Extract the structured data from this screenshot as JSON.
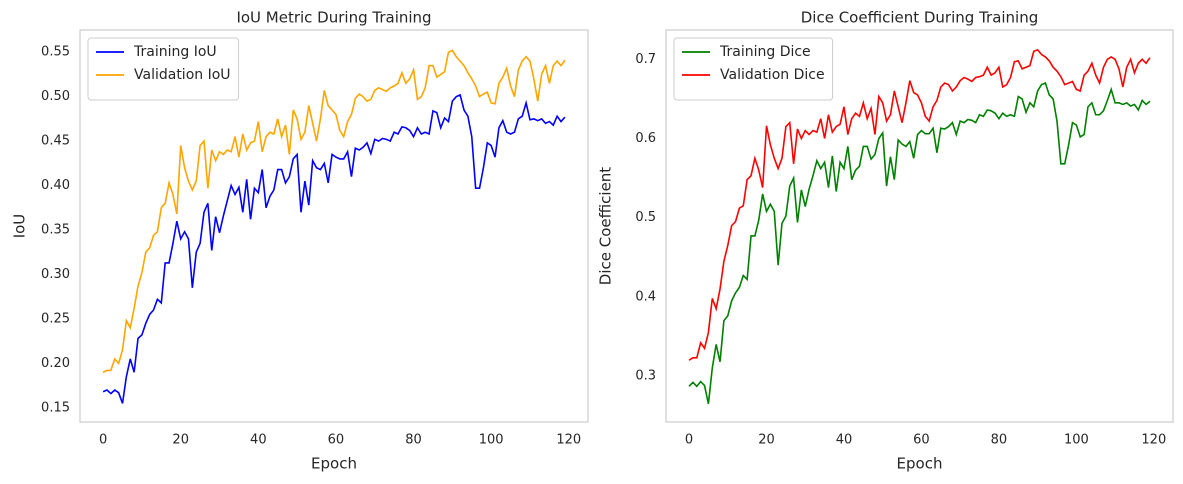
{
  "chart_data": [
    {
      "type": "line",
      "title": "IoU Metric During Training",
      "xlabel": "Epoch",
      "ylabel": "IoU",
      "x": [
        0,
        1,
        2,
        3,
        4,
        5,
        6,
        7,
        8,
        9,
        10,
        11,
        12,
        13,
        14,
        15,
        16,
        17,
        18,
        19,
        20,
        21,
        22,
        23,
        24,
        25,
        26,
        27,
        28,
        29,
        30,
        31,
        32,
        33,
        34,
        35,
        36,
        37,
        38,
        39,
        40,
        41,
        42,
        43,
        44,
        45,
        46,
        47,
        48,
        49,
        50,
        51,
        52,
        53,
        54,
        55,
        56,
        57,
        58,
        59,
        60,
        61,
        62,
        63,
        64,
        65,
        66,
        67,
        68,
        69,
        70,
        71,
        72,
        73,
        74,
        75,
        76,
        77,
        78,
        79,
        80,
        81,
        82,
        83,
        84,
        85,
        86,
        87,
        88,
        89,
        90,
        91,
        92,
        93,
        94,
        95,
        96,
        97,
        98,
        99,
        100,
        101,
        102,
        103,
        104,
        105,
        106,
        107,
        108,
        109,
        110,
        111,
        112,
        113,
        114,
        115,
        116,
        117,
        118,
        119
      ],
      "series": [
        {
          "name": "Training IoU",
          "color": "#0000ff",
          "values": [
            0.168,
            0.17,
            0.166,
            0.17,
            0.167,
            0.155,
            0.185,
            0.205,
            0.19,
            0.228,
            0.232,
            0.245,
            0.255,
            0.26,
            0.272,
            0.268,
            0.313,
            0.313,
            0.335,
            0.36,
            0.34,
            0.348,
            0.34,
            0.285,
            0.325,
            0.335,
            0.37,
            0.38,
            0.327,
            0.365,
            0.347,
            0.366,
            0.383,
            0.4,
            0.39,
            0.398,
            0.37,
            0.407,
            0.362,
            0.397,
            0.392,
            0.418,
            0.375,
            0.388,
            0.395,
            0.418,
            0.418,
            0.403,
            0.41,
            0.43,
            0.435,
            0.37,
            0.405,
            0.378,
            0.428,
            0.42,
            0.418,
            0.425,
            0.403,
            0.435,
            0.432,
            0.43,
            0.43,
            0.438,
            0.41,
            0.442,
            0.44,
            0.443,
            0.448,
            0.436,
            0.452,
            0.45,
            0.453,
            0.452,
            0.45,
            0.46,
            0.458,
            0.466,
            0.465,
            0.462,
            0.455,
            0.465,
            0.458,
            0.46,
            0.458,
            0.484,
            0.482,
            0.465,
            0.476,
            0.472,
            0.495,
            0.5,
            0.502,
            0.485,
            0.478,
            0.455,
            0.397,
            0.397,
            0.42,
            0.448,
            0.445,
            0.432,
            0.465,
            0.473,
            0.46,
            0.458,
            0.46,
            0.475,
            0.478,
            0.493,
            0.474,
            0.475,
            0.473,
            0.475,
            0.47,
            0.472,
            0.468,
            0.478,
            0.472,
            0.477
          ]
        },
        {
          "name": "Validation IoU",
          "color": "#ffa500",
          "values": [
            0.19,
            0.192,
            0.192,
            0.205,
            0.2,
            0.215,
            0.248,
            0.24,
            0.262,
            0.287,
            0.302,
            0.325,
            0.33,
            0.344,
            0.348,
            0.375,
            0.38,
            0.403,
            0.39,
            0.368,
            0.445,
            0.42,
            0.405,
            0.395,
            0.405,
            0.445,
            0.45,
            0.397,
            0.44,
            0.428,
            0.438,
            0.435,
            0.44,
            0.438,
            0.455,
            0.432,
            0.458,
            0.44,
            0.448,
            0.45,
            0.472,
            0.438,
            0.455,
            0.46,
            0.458,
            0.475,
            0.455,
            0.468,
            0.435,
            0.485,
            0.475,
            0.452,
            0.46,
            0.49,
            0.47,
            0.45,
            0.475,
            0.507,
            0.49,
            0.485,
            0.48,
            0.462,
            0.455,
            0.472,
            0.48,
            0.498,
            0.503,
            0.5,
            0.495,
            0.497,
            0.507,
            0.51,
            0.508,
            0.506,
            0.51,
            0.512,
            0.515,
            0.527,
            0.515,
            0.52,
            0.53,
            0.497,
            0.5,
            0.51,
            0.535,
            0.535,
            0.522,
            0.525,
            0.528,
            0.55,
            0.552,
            0.545,
            0.54,
            0.535,
            0.527,
            0.52,
            0.512,
            0.5,
            0.503,
            0.505,
            0.493,
            0.492,
            0.515,
            0.522,
            0.532,
            0.512,
            0.5,
            0.53,
            0.54,
            0.545,
            0.54,
            0.52,
            0.495,
            0.525,
            0.535,
            0.515,
            0.535,
            0.54,
            0.535,
            0.541
          ]
        }
      ],
      "xlim": [
        -5.95,
        124.95
      ],
      "xticks": [
        0,
        20,
        40,
        60,
        80,
        100,
        120
      ],
      "ylim": [
        0.134,
        0.575
      ],
      "yticks": [
        0.15,
        {
          "value": 0.2,
          "label": "0.20"
        },
        0.25,
        {
          "value": 0.3,
          "label": "0.30"
        },
        0.35,
        {
          "value": 0.4,
          "label": "0.40"
        },
        0.45,
        {
          "value": 0.5,
          "label": "0.50"
        },
        0.55
      ],
      "grid": false,
      "legend": "upper-left"
    },
    {
      "type": "line",
      "title": "Dice Coefficient During Training",
      "xlabel": "Epoch",
      "ylabel": "Dice Coefficient",
      "x": [
        0,
        1,
        2,
        3,
        4,
        5,
        6,
        7,
        8,
        9,
        10,
        11,
        12,
        13,
        14,
        15,
        16,
        17,
        18,
        19,
        20,
        21,
        22,
        23,
        24,
        25,
        26,
        27,
        28,
        29,
        30,
        31,
        32,
        33,
        34,
        35,
        36,
        37,
        38,
        39,
        40,
        41,
        42,
        43,
        44,
        45,
        46,
        47,
        48,
        49,
        50,
        51,
        52,
        53,
        54,
        55,
        56,
        57,
        58,
        59,
        60,
        61,
        62,
        63,
        64,
        65,
        66,
        67,
        68,
        69,
        70,
        71,
        72,
        73,
        74,
        75,
        76,
        77,
        78,
        79,
        80,
        81,
        82,
        83,
        84,
        85,
        86,
        87,
        88,
        89,
        90,
        91,
        92,
        93,
        94,
        95,
        96,
        97,
        98,
        99,
        100,
        101,
        102,
        103,
        104,
        105,
        106,
        107,
        108,
        109,
        110,
        111,
        112,
        113,
        114,
        115,
        116,
        117,
        118,
        119
      ],
      "series": [
        {
          "name": "Training Dice",
          "color": "#008000",
          "values": [
            0.287,
            0.292,
            0.287,
            0.293,
            0.288,
            0.265,
            0.31,
            0.34,
            0.318,
            0.37,
            0.376,
            0.395,
            0.405,
            0.412,
            0.427,
            0.422,
            0.477,
            0.477,
            0.497,
            0.53,
            0.508,
            0.517,
            0.508,
            0.44,
            0.493,
            0.502,
            0.54,
            0.55,
            0.494,
            0.535,
            0.514,
            0.536,
            0.553,
            0.572,
            0.562,
            0.57,
            0.538,
            0.578,
            0.533,
            0.57,
            0.562,
            0.59,
            0.548,
            0.56,
            0.565,
            0.59,
            0.59,
            0.574,
            0.58,
            0.6,
            0.607,
            0.54,
            0.577,
            0.548,
            0.598,
            0.593,
            0.59,
            0.596,
            0.575,
            0.605,
            0.61,
            0.606,
            0.606,
            0.613,
            0.582,
            0.613,
            0.612,
            0.615,
            0.62,
            0.605,
            0.622,
            0.62,
            0.624,
            0.623,
            0.62,
            0.63,
            0.628,
            0.636,
            0.635,
            0.632,
            0.625,
            0.632,
            0.628,
            0.63,
            0.628,
            0.653,
            0.65,
            0.633,
            0.645,
            0.64,
            0.66,
            0.668,
            0.67,
            0.655,
            0.65,
            0.622,
            0.568,
            0.568,
            0.592,
            0.62,
            0.617,
            0.602,
            0.605,
            0.64,
            0.645,
            0.63,
            0.63,
            0.635,
            0.648,
            0.662,
            0.645,
            0.645,
            0.643,
            0.645,
            0.641,
            0.643,
            0.636,
            0.648,
            0.643,
            0.647
          ]
        },
        {
          "name": "Validation Dice",
          "color": "#ff0000",
          "values": [
            0.32,
            0.323,
            0.323,
            0.342,
            0.335,
            0.355,
            0.398,
            0.385,
            0.41,
            0.445,
            0.465,
            0.49,
            0.495,
            0.512,
            0.515,
            0.548,
            0.553,
            0.575,
            0.56,
            0.538,
            0.616,
            0.592,
            0.575,
            0.562,
            0.575,
            0.615,
            0.62,
            0.568,
            0.612,
            0.6,
            0.61,
            0.605,
            0.61,
            0.608,
            0.625,
            0.6,
            0.63,
            0.608,
            0.615,
            0.618,
            0.64,
            0.605,
            0.625,
            0.632,
            0.628,
            0.645,
            0.625,
            0.638,
            0.605,
            0.653,
            0.645,
            0.622,
            0.63,
            0.66,
            0.64,
            0.62,
            0.645,
            0.673,
            0.658,
            0.655,
            0.645,
            0.628,
            0.622,
            0.64,
            0.648,
            0.665,
            0.67,
            0.668,
            0.66,
            0.665,
            0.673,
            0.677,
            0.675,
            0.672,
            0.677,
            0.678,
            0.68,
            0.69,
            0.68,
            0.683,
            0.69,
            0.665,
            0.668,
            0.677,
            0.697,
            0.698,
            0.688,
            0.69,
            0.692,
            0.71,
            0.712,
            0.706,
            0.703,
            0.698,
            0.69,
            0.685,
            0.678,
            0.668,
            0.67,
            0.672,
            0.662,
            0.66,
            0.68,
            0.685,
            0.695,
            0.68,
            0.67,
            0.69,
            0.7,
            0.703,
            0.7,
            0.688,
            0.665,
            0.69,
            0.7,
            0.683,
            0.695,
            0.7,
            0.695,
            0.702
          ]
        }
      ],
      "xlim": [
        -5.95,
        124.95
      ],
      "xticks": [
        0,
        20,
        40,
        60,
        80,
        100,
        120
      ],
      "ylim": [
        0.242,
        0.737
      ],
      "yticks": [
        0.3,
        0.4,
        0.5,
        0.6,
        0.7
      ],
      "grid": false,
      "legend": "upper-left"
    }
  ]
}
